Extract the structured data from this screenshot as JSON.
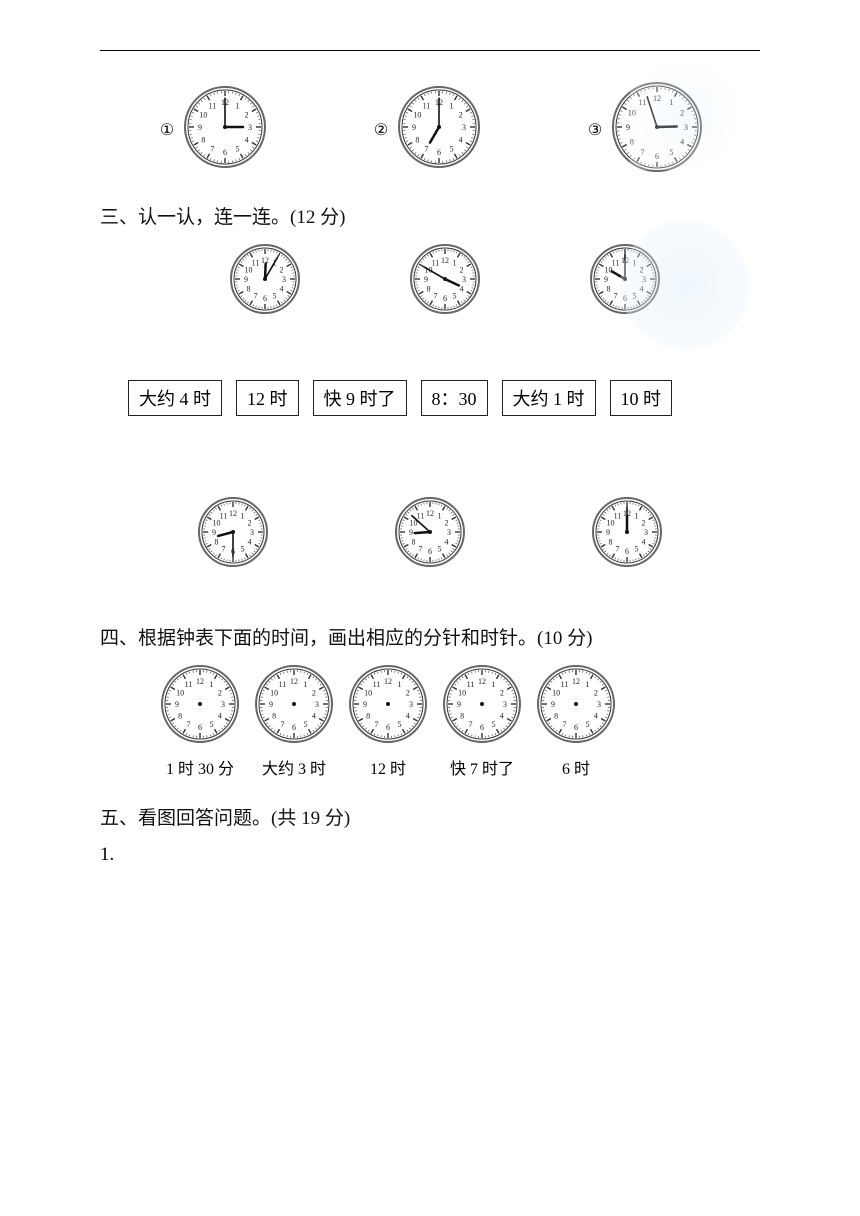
{
  "top_row": {
    "items": [
      {
        "num": "①",
        "hour": 3,
        "minute": 0,
        "radius": 40
      },
      {
        "num": "②",
        "hour": 7,
        "minute": 0,
        "radius": 40
      },
      {
        "num": "③",
        "hour": 2,
        "minute": 57,
        "radius": 44
      }
    ]
  },
  "section3": {
    "title": "三、认一认，连一连。(12 分)",
    "clocks_top": [
      {
        "hour": 12,
        "minute": 5,
        "radius": 34
      },
      {
        "hour": 3,
        "minute": 50,
        "radius": 34
      },
      {
        "hour": 10,
        "minute": 0,
        "radius": 34
      }
    ],
    "answers": [
      "大约 4 时",
      "12 时",
      "快 9 时了",
      "8：30",
      "大约 1 时",
      "10 时"
    ],
    "clocks_bottom": [
      {
        "hour": 8,
        "minute": 30,
        "radius": 34
      },
      {
        "hour": 8,
        "minute": 52,
        "radius": 34
      },
      {
        "hour": 12,
        "minute": 0,
        "radius": 34
      }
    ]
  },
  "section4": {
    "title": "四、根据钟表下面的时间，画出相应的分针和时针。(10 分)",
    "clocks": [
      {
        "caption": "1 时 30 分",
        "radius": 38,
        "empty": true
      },
      {
        "caption": "大约 3 时",
        "radius": 38,
        "empty": true
      },
      {
        "caption": "12 时",
        "radius": 38,
        "empty": true
      },
      {
        "caption": "快 7 时了",
        "radius": 38,
        "empty": true
      },
      {
        "caption": "6 时",
        "radius": 38,
        "empty": true
      }
    ]
  },
  "section5": {
    "title": "五、看图回答问题。(共 19 分)",
    "q1_label": "1."
  },
  "style": {
    "clock_face_fill": "#ffffff",
    "clock_outline": "#333333",
    "clock_rim": "#666666",
    "tick_color": "#333333",
    "number_color": "#222222",
    "hand_color": "#111111",
    "number_fontsize": 8
  }
}
